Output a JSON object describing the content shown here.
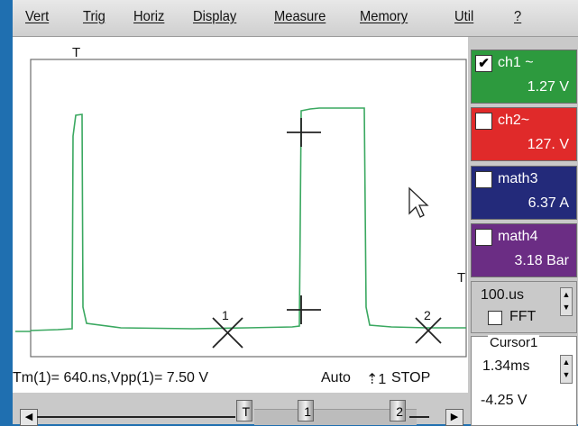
{
  "menu": [
    "Vert",
    "Trig",
    "Horiz",
    "Display",
    "Measure",
    "Memory",
    "Util",
    "?"
  ],
  "plot": {
    "trigger_marker": "T",
    "cursor1_label": "1",
    "cursor2_label": "2",
    "trace_color": "#3aa860"
  },
  "channels": [
    {
      "name": "ch1 ~",
      "value": "1.27 V",
      "checked": true,
      "check_mark": "✔",
      "color": "#2d9a3e"
    },
    {
      "name": "ch2~",
      "value": "127. V",
      "checked": false,
      "check_mark": "",
      "color": "#e02a2a"
    },
    {
      "name": "math3",
      "value": "6.37 A",
      "checked": false,
      "check_mark": "",
      "color": "#232a7a"
    },
    {
      "name": "math4",
      "value": "3.18 Bar",
      "checked": false,
      "check_mark": "",
      "color": "#6b2d84"
    }
  ],
  "timebase": {
    "value": "100.us",
    "fft_label": "FFT",
    "trigger_level_marker": "T"
  },
  "cursor": {
    "title": "Cursor1",
    "time": "1.34ms",
    "voltage": "-4.25 V"
  },
  "status": {
    "measure": "Tm(1)=  640.ns,Vpp(1)=  7.50 V",
    "mode": "Auto",
    "trigger_icon": "⇡1",
    "run_state": "STOP"
  },
  "scrollbar": {
    "left_arrow": "◀",
    "right_arrow": "▶",
    "markers": [
      "T",
      "1",
      "2"
    ]
  }
}
